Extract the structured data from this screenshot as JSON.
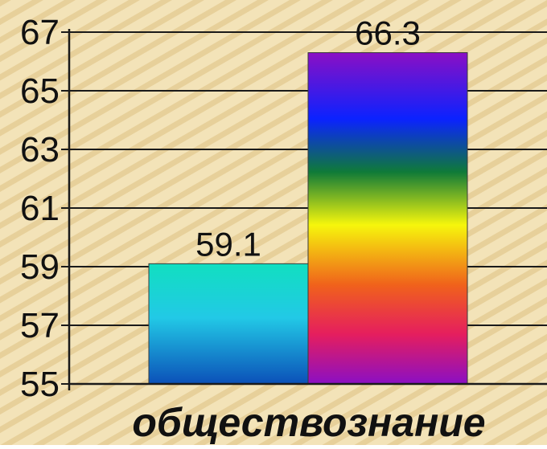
{
  "chart_data": {
    "type": "bar",
    "title": "",
    "xlabel": "",
    "ylabel": "",
    "categories": [
      "обществознание"
    ],
    "series": [
      {
        "values": [
          59.1
        ],
        "label": "59.1"
      },
      {
        "values": [
          66.3
        ],
        "label": "66.3"
      }
    ],
    "ylim": [
      55,
      67
    ],
    "yticks": [
      "55",
      "57",
      "59",
      "61",
      "63",
      "65",
      "67"
    ],
    "ytick_values": [
      55,
      57,
      59,
      61,
      63,
      65,
      67
    ],
    "grid": true,
    "legend": "none"
  }
}
